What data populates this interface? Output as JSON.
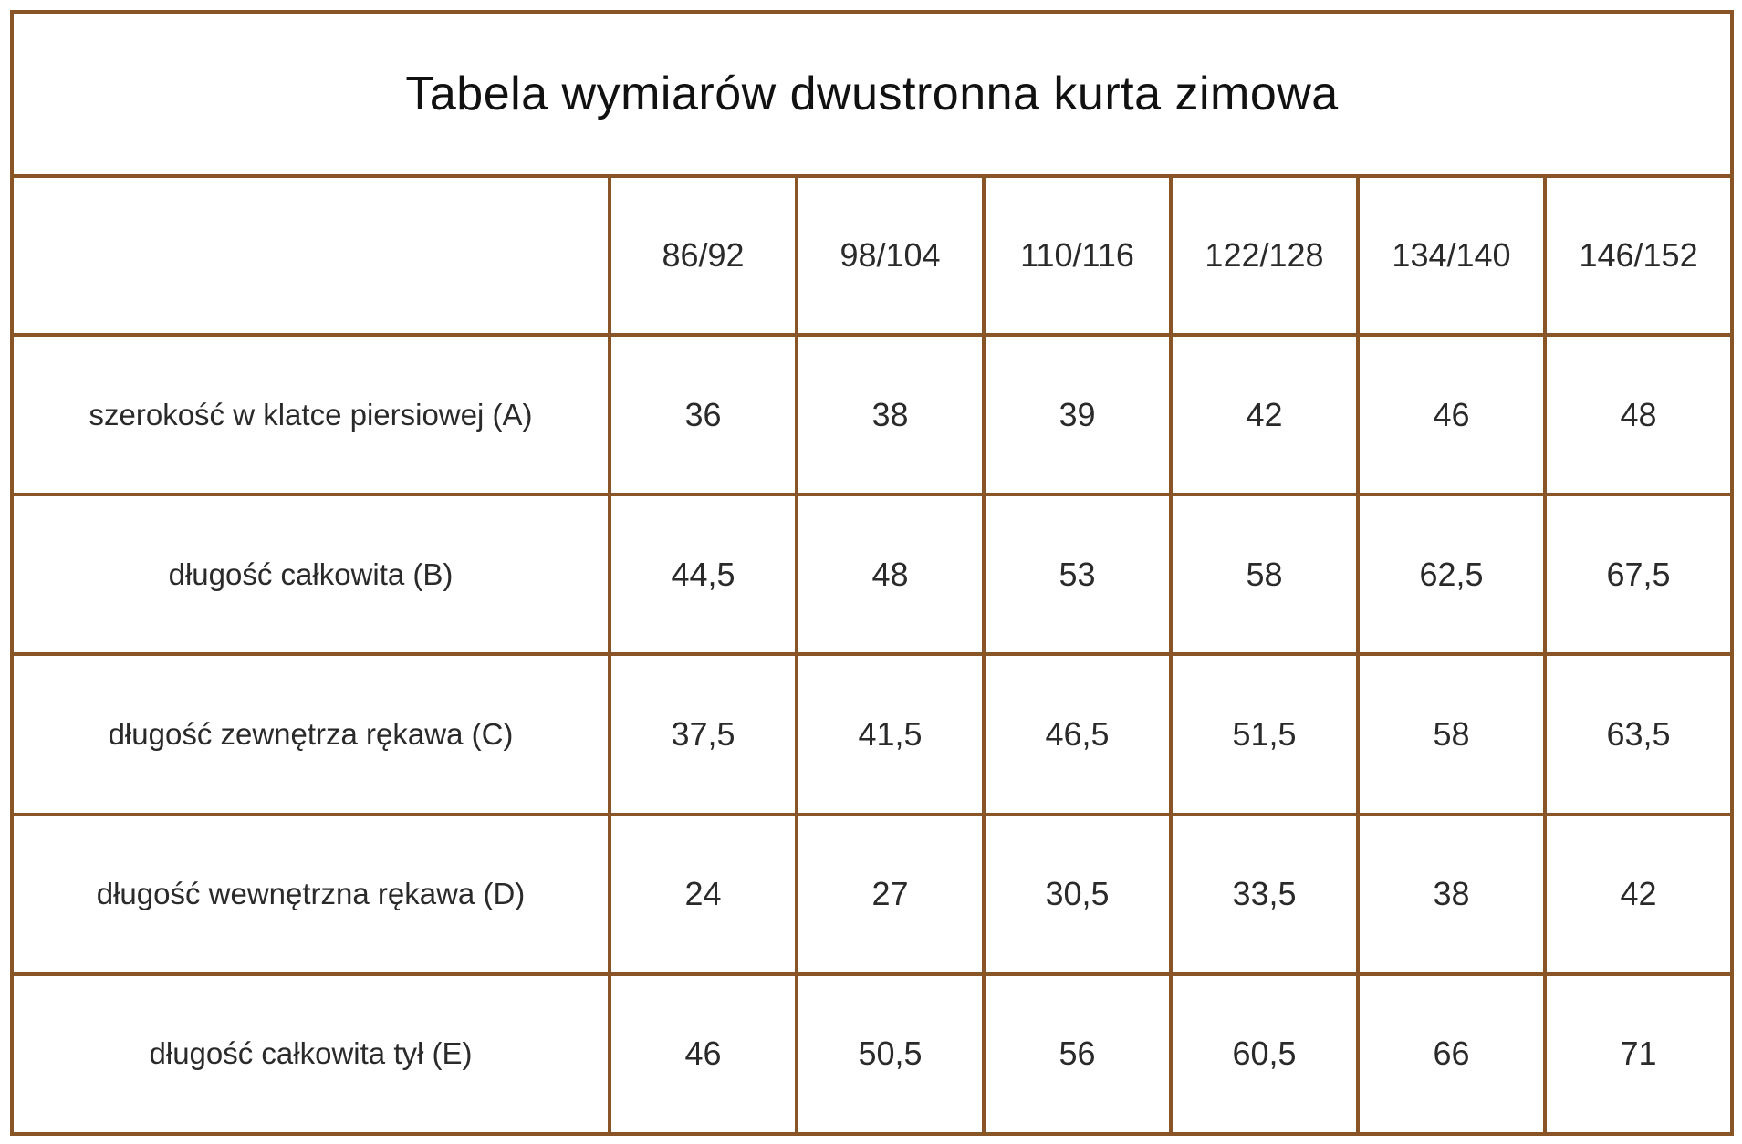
{
  "title": "Tabela wymiarów dwustronna kurta zimowa",
  "corner_label": "",
  "sizes": [
    "86/92",
    "98/104",
    "110/116",
    "122/128",
    "134/140",
    "146/152"
  ],
  "rows": [
    {
      "label": "szerokość w klatce piersiowej (A)",
      "values": [
        "36",
        "38",
        "39",
        "42",
        "46",
        "48"
      ]
    },
    {
      "label": "długość całkowita (B)",
      "values": [
        "44,5",
        "48",
        "53",
        "58",
        "62,5",
        "67,5"
      ]
    },
    {
      "label": "długość zewnętrza rękawa (C)",
      "values": [
        "37,5",
        "41,5",
        "46,5",
        "51,5",
        "58",
        "63,5"
      ]
    },
    {
      "label": "długość wewnętrzna rękawa (D)",
      "values": [
        "24",
        "27",
        "30,5",
        "33,5",
        "38",
        "42"
      ]
    },
    {
      "label": "długość całkowita tył (E)",
      "values": [
        "46",
        "50,5",
        "56",
        "60,5",
        "66",
        "71"
      ]
    }
  ],
  "colors": {
    "border": "#8a5526",
    "text": "#2a2a2a",
    "background": "#ffffff"
  }
}
